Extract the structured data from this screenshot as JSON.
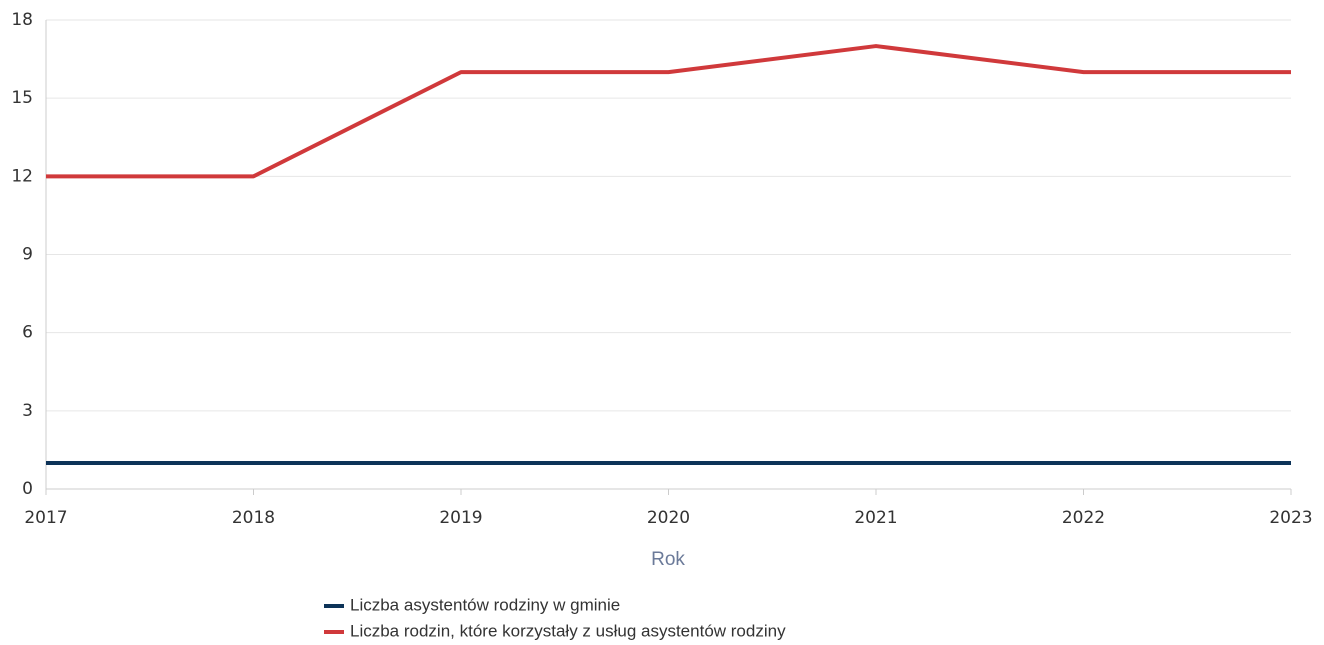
{
  "chart_data": {
    "type": "line",
    "x": [
      2017,
      2018,
      2019,
      2020,
      2021,
      2022,
      2023
    ],
    "xlim": [
      2017,
      2023
    ],
    "xticks": [
      2017,
      2018,
      2019,
      2020,
      2021,
      2022,
      2023
    ],
    "ylim": [
      0,
      18
    ],
    "yticks": [
      0,
      3,
      6,
      9,
      12,
      15,
      18
    ],
    "x_label": "Rok",
    "grid": true,
    "series": [
      {
        "name": "Liczba asystentów rodziny w gminie",
        "color": "#0d3358",
        "values": [
          1,
          1,
          1,
          1,
          1,
          1,
          1
        ]
      },
      {
        "name": "Liczba rodzin, które korzystały z usług asystentów rodziny",
        "color": "#d0393b",
        "values": [
          12,
          12,
          16,
          16,
          17,
          16,
          16
        ]
      }
    ]
  }
}
